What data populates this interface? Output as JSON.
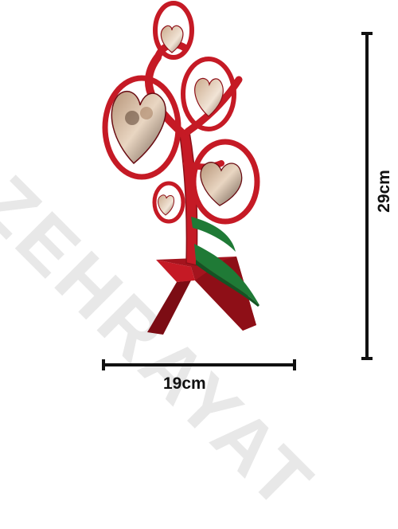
{
  "product": {
    "type": "heart photo tree stand",
    "colors": {
      "frame": "#c51a25",
      "frame_dark": "#8e0f17",
      "leaf": "#1f7a36",
      "leaf_dark": "#145424",
      "dimension_lines": "#111111",
      "watermark": "#e4e4e4"
    }
  },
  "dimensions": {
    "width_label": "19cm",
    "height_label": "29cm"
  },
  "watermark": {
    "text": "ZEHRAYAT"
  }
}
